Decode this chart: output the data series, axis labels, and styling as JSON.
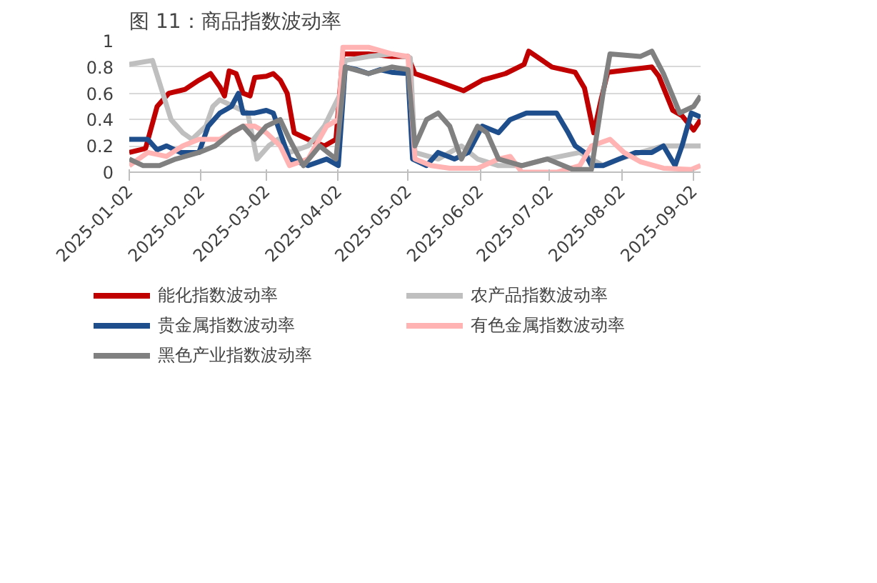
{
  "chart_data": {
    "type": "line",
    "title": "图 11：商品指数波动率",
    "xlim": [
      "2025-01-02",
      "2025-09-05"
    ],
    "xticks": [
      {
        "value": "2025-01-02",
        "label": "2025-01-02"
      },
      {
        "value": "2025-02-02",
        "label": "2025-02-02"
      },
      {
        "value": "2025-03-02",
        "label": "2025-03-02"
      },
      {
        "value": "2025-04-02",
        "label": "2025-04-02"
      },
      {
        "value": "2025-05-02",
        "label": "2025-05-02"
      },
      {
        "value": "2025-06-02",
        "label": "2025-06-02"
      },
      {
        "value": "2025-07-02",
        "label": "2025-07-02"
      },
      {
        "value": "2025-08-02",
        "label": "2025-08-02"
      },
      {
        "value": "2025-09-02",
        "label": "2025-09-02"
      }
    ],
    "ylim": [
      0,
      1
    ],
    "yticks": [
      0,
      0.2,
      0.4,
      0.6,
      0.8,
      1
    ],
    "grid": "y",
    "legend": "bottom",
    "line_style": "solid",
    "series": [
      {
        "name": "能化指数波动率",
        "color": "#c00000",
        "x": [
          "2025-01-02",
          "2025-01-09",
          "2025-01-14",
          "2025-01-19",
          "2025-01-26",
          "2025-02-01",
          "2025-02-06",
          "2025-02-10",
          "2025-02-12",
          "2025-02-14",
          "2025-02-17",
          "2025-02-20",
          "2025-02-23",
          "2025-02-25",
          "2025-03-02",
          "2025-03-05",
          "2025-03-08",
          "2025-03-11",
          "2025-03-14",
          "2025-03-20",
          "2025-03-27",
          "2025-04-01",
          "2025-04-04",
          "2025-04-15",
          "2025-04-25",
          "2025-05-02",
          "2025-05-05",
          "2025-05-15",
          "2025-05-26",
          "2025-06-03",
          "2025-06-13",
          "2025-06-21",
          "2025-06-23",
          "2025-07-03",
          "2025-07-13",
          "2025-07-17",
          "2025-07-21",
          "2025-07-24",
          "2025-07-27",
          "2025-08-15",
          "2025-08-18",
          "2025-08-24",
          "2025-08-28",
          "2025-09-02",
          "2025-09-05"
        ],
        "values": [
          0.15,
          0.18,
          0.5,
          0.6,
          0.63,
          0.7,
          0.75,
          0.65,
          0.58,
          0.77,
          0.75,
          0.6,
          0.58,
          0.72,
          0.73,
          0.75,
          0.7,
          0.6,
          0.3,
          0.25,
          0.2,
          0.25,
          0.9,
          0.9,
          0.88,
          0.88,
          0.75,
          0.69,
          0.62,
          0.7,
          0.75,
          0.82,
          0.92,
          0.8,
          0.76,
          0.64,
          0.3,
          0.54,
          0.76,
          0.8,
          0.73,
          0.47,
          0.43,
          0.32,
          0.4
        ]
      },
      {
        "name": "农产品指数波动率",
        "color": "#bfbfbf",
        "x": [
          "2025-01-02",
          "2025-01-12",
          "2025-01-20",
          "2025-01-25",
          "2025-01-29",
          "2025-02-04",
          "2025-02-07",
          "2025-02-10",
          "2025-02-16",
          "2025-02-22",
          "2025-02-26",
          "2025-03-03",
          "2025-03-07",
          "2025-03-12",
          "2025-03-20",
          "2025-03-27",
          "2025-04-03",
          "2025-04-05",
          "2025-04-15",
          "2025-04-25",
          "2025-05-03",
          "2025-05-05",
          "2025-05-15",
          "2025-05-25",
          "2025-06-01",
          "2025-06-10",
          "2025-06-20",
          "2025-07-01",
          "2025-07-15",
          "2025-07-25",
          "2025-08-01",
          "2025-08-10",
          "2025-08-20",
          "2025-09-01",
          "2025-09-05"
        ],
        "values": [
          0.82,
          0.85,
          0.4,
          0.3,
          0.25,
          0.35,
          0.5,
          0.55,
          0.5,
          0.45,
          0.1,
          0.2,
          0.25,
          0.15,
          0.2,
          0.35,
          0.6,
          0.85,
          0.88,
          0.9,
          0.87,
          0.15,
          0.1,
          0.2,
          0.1,
          0.05,
          0.05,
          0.1,
          0.15,
          0.05,
          0.1,
          0.15,
          0.2,
          0.2,
          0.2
        ]
      },
      {
        "name": "贵金属指数波动率",
        "color": "#1f4e8c",
        "x": [
          "2025-01-02",
          "2025-01-10",
          "2025-01-14",
          "2025-01-18",
          "2025-01-24",
          "2025-02-01",
          "2025-02-05",
          "2025-02-10",
          "2025-02-15",
          "2025-02-18",
          "2025-02-20",
          "2025-02-25",
          "2025-03-02",
          "2025-03-05",
          "2025-03-08",
          "2025-03-12",
          "2025-03-20",
          "2025-03-28",
          "2025-04-02",
          "2025-04-05",
          "2025-04-10",
          "2025-04-15",
          "2025-04-20",
          "2025-04-25",
          "2025-05-02",
          "2025-05-04",
          "2025-05-10",
          "2025-05-15",
          "2025-05-22",
          "2025-05-28",
          "2025-06-03",
          "2025-06-10",
          "2025-06-15",
          "2025-06-22",
          "2025-06-28",
          "2025-07-05",
          "2025-07-10",
          "2025-07-13",
          "2025-07-17",
          "2025-07-20",
          "2025-07-25",
          "2025-08-01",
          "2025-08-08",
          "2025-08-15",
          "2025-08-20",
          "2025-08-25",
          "2025-08-28",
          "2025-09-01",
          "2025-09-05"
        ],
        "values": [
          0.25,
          0.25,
          0.17,
          0.2,
          0.15,
          0.15,
          0.35,
          0.45,
          0.5,
          0.6,
          0.45,
          0.45,
          0.47,
          0.45,
          0.3,
          0.1,
          0.05,
          0.1,
          0.05,
          0.8,
          0.78,
          0.75,
          0.78,
          0.76,
          0.75,
          0.1,
          0.05,
          0.15,
          0.1,
          0.15,
          0.35,
          0.3,
          0.4,
          0.45,
          0.45,
          0.45,
          0.3,
          0.2,
          0.15,
          0.05,
          0.05,
          0.1,
          0.15,
          0.15,
          0.2,
          0.05,
          0.2,
          0.45,
          0.42
        ]
      },
      {
        "name": "有色金属指数波动率",
        "color": "#ffb3b3",
        "x": [
          "2025-01-02",
          "2025-01-10",
          "2025-01-18",
          "2025-01-25",
          "2025-02-01",
          "2025-02-10",
          "2025-02-15",
          "2025-02-20",
          "2025-02-25",
          "2025-03-02",
          "2025-03-08",
          "2025-03-12",
          "2025-03-20",
          "2025-03-28",
          "2025-04-02",
          "2025-04-04",
          "2025-04-15",
          "2025-04-25",
          "2025-05-02",
          "2025-05-05",
          "2025-05-12",
          "2025-05-20",
          "2025-06-01",
          "2025-06-10",
          "2025-06-15",
          "2025-06-20",
          "2025-07-05",
          "2025-07-15",
          "2025-07-20",
          "2025-07-28",
          "2025-08-03",
          "2025-08-10",
          "2025-08-20",
          "2025-09-01",
          "2025-09-05"
        ],
        "values": [
          0.05,
          0.15,
          0.12,
          0.2,
          0.25,
          0.25,
          0.3,
          0.35,
          0.35,
          0.3,
          0.2,
          0.05,
          0.1,
          0.35,
          0.4,
          0.95,
          0.95,
          0.9,
          0.88,
          0.1,
          0.05,
          0.03,
          0.03,
          0.1,
          0.12,
          0,
          0,
          0.05,
          0.2,
          0.25,
          0.15,
          0.08,
          0.03,
          0.02,
          0.05
        ]
      },
      {
        "name": "黑色产业指数波动率",
        "color": "#808080",
        "x": [
          "2025-01-02",
          "2025-01-08",
          "2025-01-15",
          "2025-01-22",
          "2025-02-01",
          "2025-02-08",
          "2025-02-15",
          "2025-02-20",
          "2025-02-25",
          "2025-03-02",
          "2025-03-08",
          "2025-03-12",
          "2025-03-18",
          "2025-03-25",
          "2025-04-01",
          "2025-04-05",
          "2025-04-15",
          "2025-04-25",
          "2025-05-02",
          "2025-05-05",
          "2025-05-10",
          "2025-05-15",
          "2025-05-20",
          "2025-05-25",
          "2025-06-01",
          "2025-06-05",
          "2025-06-10",
          "2025-06-20",
          "2025-07-01",
          "2025-07-12",
          "2025-07-20",
          "2025-07-25",
          "2025-07-28",
          "2025-08-10",
          "2025-08-15",
          "2025-08-20",
          "2025-08-27",
          "2025-09-02",
          "2025-09-05"
        ],
        "values": [
          0.1,
          0.05,
          0.05,
          0.1,
          0.15,
          0.2,
          0.3,
          0.35,
          0.25,
          0.35,
          0.4,
          0.25,
          0.05,
          0.2,
          0.1,
          0.8,
          0.75,
          0.8,
          0.78,
          0.2,
          0.4,
          0.45,
          0.35,
          0.1,
          0.35,
          0.3,
          0.1,
          0.05,
          0.1,
          0.02,
          0.02,
          0.6,
          0.9,
          0.88,
          0.92,
          0.75,
          0.45,
          0.5,
          0.58
        ]
      }
    ]
  }
}
